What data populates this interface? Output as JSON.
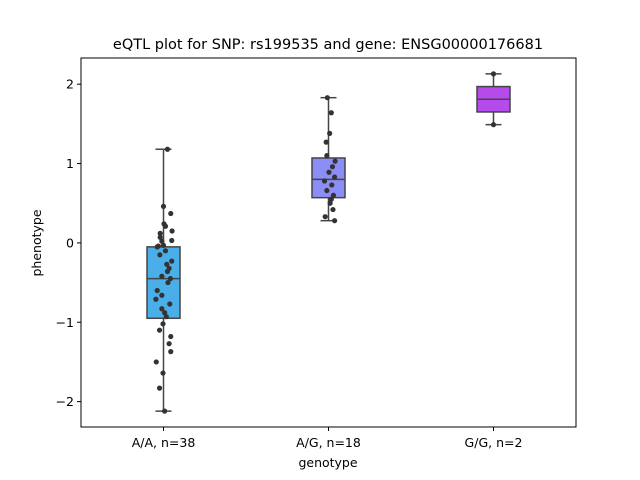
{
  "chart_data": {
    "type": "box",
    "title": "eQTL plot for SNP: rs199535 and gene: ENSG00000176681",
    "xlabel": "genotype",
    "ylabel": "phenotype",
    "ylim": [
      -2.32,
      2.33
    ],
    "yticks": [
      -2,
      -1,
      0,
      1,
      2
    ],
    "ytick_labels": [
      "−2",
      "−1",
      "0",
      "1",
      "2"
    ],
    "grid": false,
    "categories": [
      "A/A, n=38",
      "A/G, n=18",
      "G/G, n=2"
    ],
    "boxes": [
      {
        "category": "A/A, n=38",
        "color": "#4aaee8",
        "q1": -0.95,
        "median": -0.45,
        "q3": -0.05,
        "whisker_low": -2.12,
        "whisker_high": 1.18
      },
      {
        "category": "A/G, n=18",
        "color": "#8c8ef7",
        "q1": 0.57,
        "median": 0.8,
        "q3": 1.07,
        "whisker_low": 0.28,
        "whisker_high": 1.83
      },
      {
        "category": "G/G, n=2",
        "color": "#b44bea",
        "q1": 1.65,
        "median": 1.81,
        "q3": 1.97,
        "whisker_low": 1.49,
        "whisker_high": 2.13
      }
    ],
    "points": [
      {
        "category": "A/A, n=38",
        "values": [
          1.18,
          0.37,
          0.24,
          0.21,
          0.15,
          0.12,
          0.07,
          0.03,
          0.02,
          -0.04,
          -0.05,
          -0.1,
          -0.15,
          -0.23,
          -0.27,
          -0.32,
          -0.36,
          -0.42,
          -0.45,
          -0.5,
          -0.6,
          -0.66,
          -0.71,
          -0.77,
          -0.83,
          -0.88,
          -0.93,
          -1.02,
          -1.1,
          -1.18,
          -1.27,
          -1.37,
          -1.5,
          -1.64,
          -1.83,
          -2.12,
          0.46,
          -0.03
        ],
        "offsets": [
          0.24,
          0.44,
          0.03,
          0.12,
          0.52,
          -0.2,
          -0.2,
          0.5,
          -0.1,
          -0.31,
          -0.38,
          0.12,
          -0.22,
          0.5,
          0.2,
          0.34,
          0.24,
          -0.1,
          0.42,
          0.27,
          -0.38,
          -0.1,
          -0.46,
          0.38,
          -0.1,
          0.07,
          0.17,
          -0.03,
          -0.24,
          0.44,
          0.34,
          0.44,
          -0.44,
          -0.03,
          -0.24,
          0.07,
          0.0,
          0.0
        ]
      },
      {
        "category": "A/G, n=18",
        "values": [
          1.83,
          1.64,
          1.38,
          1.27,
          1.1,
          1.03,
          0.96,
          0.89,
          0.83,
          0.78,
          0.73,
          0.66,
          0.6,
          0.55,
          0.5,
          0.42,
          0.33,
          0.28
        ],
        "offsets": [
          -0.07,
          0.17,
          0.07,
          -0.14,
          -0.1,
          0.4,
          0.24,
          0.03,
          0.37,
          -0.24,
          0.2,
          -0.1,
          0.3,
          0.17,
          0.1,
          0.27,
          -0.2,
          0.37
        ]
      },
      {
        "category": "G/G, n=2",
        "values": [
          2.13,
          1.49
        ],
        "offsets": [
          0.0,
          0.0
        ]
      }
    ]
  }
}
